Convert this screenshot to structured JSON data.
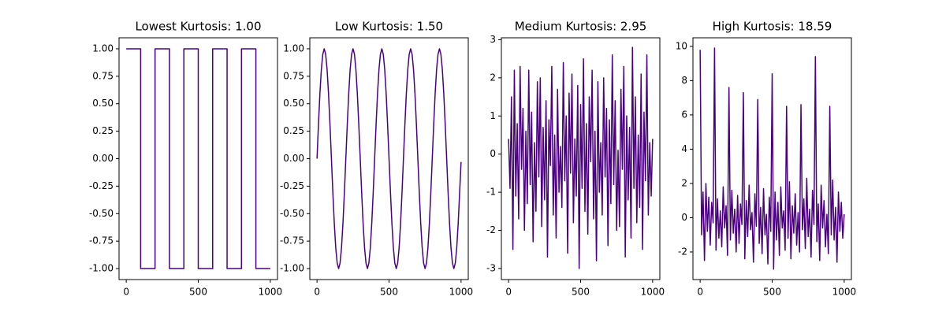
{
  "chart_data": [
    {
      "type": "line",
      "title": "Lowest Kurtosis: 1.00",
      "color": "#4b0082",
      "x": [
        0,
        100,
        100,
        200,
        200,
        300,
        300,
        400,
        400,
        500,
        500,
        600,
        600,
        700,
        700,
        800,
        800,
        900,
        900,
        1000
      ],
      "values": [
        1,
        1,
        -1,
        -1,
        1,
        1,
        -1,
        -1,
        1,
        1,
        -1,
        -1,
        1,
        1,
        -1,
        -1,
        1,
        1,
        -1,
        -1
      ],
      "xlim": [
        -50,
        1050
      ],
      "xticks": [
        0,
        500,
        1000
      ],
      "ylim": [
        -1.1,
        1.1
      ],
      "yticks": [
        {
          "value": -1,
          "label": "-1.00"
        },
        {
          "value": -0.75,
          "label": "-0.75"
        },
        {
          "value": -0.5,
          "label": "-0.50"
        },
        {
          "value": -0.25,
          "label": "-0.25"
        },
        {
          "value": 0,
          "label": "0.00"
        },
        {
          "value": 0.25,
          "label": "0.25"
        },
        {
          "value": 0.5,
          "label": "0.50"
        },
        {
          "value": 0.75,
          "label": "0.75"
        },
        {
          "value": 1,
          "label": "1.00"
        }
      ]
    },
    {
      "type": "line",
      "title": "Low Kurtosis: 1.50",
      "color": "#4b0082",
      "x": [
        0,
        10,
        20,
        30,
        40,
        50,
        60,
        70,
        80,
        90,
        100,
        110,
        120,
        130,
        140,
        150,
        160,
        170,
        180,
        190,
        200,
        210,
        220,
        230,
        240,
        250,
        260,
        270,
        280,
        290,
        300,
        310,
        320,
        330,
        340,
        350,
        360,
        370,
        380,
        390,
        400,
        410,
        420,
        430,
        440,
        450,
        460,
        470,
        480,
        490,
        500,
        510,
        520,
        530,
        540,
        550,
        560,
        570,
        580,
        590,
        600,
        610,
        620,
        630,
        640,
        650,
        660,
        670,
        680,
        690,
        700,
        710,
        720,
        730,
        740,
        750,
        760,
        770,
        780,
        790,
        800,
        810,
        820,
        830,
        840,
        850,
        860,
        870,
        880,
        890,
        900,
        910,
        920,
        930,
        940,
        950,
        960,
        970,
        980,
        990,
        1000
      ],
      "values": [
        0,
        0.31,
        0.59,
        0.81,
        0.95,
        1,
        0.95,
        0.81,
        0.59,
        0.31,
        0,
        -0.31,
        -0.59,
        -0.81,
        -0.95,
        -1,
        -0.95,
        -0.81,
        -0.59,
        -0.31,
        0,
        0.31,
        0.59,
        0.81,
        0.95,
        1,
        0.95,
        0.81,
        0.59,
        0.31,
        0,
        -0.31,
        -0.59,
        -0.81,
        -0.95,
        -1,
        -0.95,
        -0.81,
        -0.59,
        -0.31,
        0,
        0.31,
        0.59,
        0.81,
        0.95,
        1,
        0.95,
        0.81,
        0.59,
        0.31,
        0,
        -0.31,
        -0.59,
        -0.81,
        -0.95,
        -1,
        -0.95,
        -0.81,
        -0.59,
        -0.31,
        0,
        0.31,
        0.59,
        0.81,
        0.95,
        1,
        0.95,
        0.81,
        0.59,
        0.31,
        0,
        -0.31,
        -0.59,
        -0.81,
        -0.95,
        -1,
        -0.95,
        -0.81,
        -0.59,
        -0.31,
        0,
        0.31,
        0.59,
        0.81,
        0.95,
        1,
        0.95,
        0.81,
        0.59,
        0.31,
        0,
        -0.31,
        -0.59,
        -0.81,
        -0.95,
        -1,
        -0.95,
        -0.81,
        -0.59,
        -0.31,
        -0.03
      ],
      "xlim": [
        -50,
        1050
      ],
      "xticks": [
        0,
        500,
        1000
      ],
      "ylim": [
        -1.1,
        1.1
      ],
      "yticks": [
        {
          "value": -1,
          "label": "-1.00"
        },
        {
          "value": -0.75,
          "label": "-0.75"
        },
        {
          "value": -0.5,
          "label": "-0.50"
        },
        {
          "value": -0.25,
          "label": "-0.25"
        },
        {
          "value": 0,
          "label": "0.00"
        },
        {
          "value": 0.25,
          "label": "0.25"
        },
        {
          "value": 0.5,
          "label": "0.50"
        },
        {
          "value": 0.75,
          "label": "0.75"
        },
        {
          "value": 1,
          "label": "1.00"
        }
      ]
    },
    {
      "type": "line",
      "title": "Medium Kurtosis: 2.95",
      "color": "#4b0082",
      "x": [
        0,
        10,
        20,
        30,
        40,
        50,
        60,
        70,
        80,
        90,
        100,
        110,
        120,
        130,
        140,
        150,
        160,
        170,
        180,
        190,
        200,
        210,
        220,
        230,
        240,
        250,
        260,
        270,
        280,
        290,
        300,
        310,
        320,
        330,
        340,
        350,
        360,
        370,
        380,
        390,
        400,
        410,
        420,
        430,
        440,
        450,
        460,
        470,
        480,
        490,
        500,
        510,
        520,
        530,
        540,
        550,
        560,
        570,
        580,
        590,
        600,
        610,
        620,
        630,
        640,
        650,
        660,
        670,
        680,
        690,
        700,
        710,
        720,
        730,
        740,
        750,
        760,
        770,
        780,
        790,
        800,
        810,
        820,
        830,
        840,
        850,
        860,
        870,
        880,
        890,
        900,
        910,
        920,
        930,
        940,
        950,
        960,
        970,
        980,
        990,
        1000
      ],
      "values": [
        0.4,
        -0.9,
        1.5,
        -2.5,
        2.2,
        -1.1,
        0.8,
        -1.7,
        2.3,
        -0.4,
        1.2,
        -2.0,
        0.6,
        -1.3,
        2.2,
        -0.8,
        1.1,
        -2.3,
        0.3,
        -1.5,
        1.9,
        -0.6,
        2.0,
        -1.9,
        0.7,
        -1.2,
        1.4,
        -2.7,
        0.9,
        -0.3,
        2.3,
        -1.6,
        0.5,
        -2.2,
        1.7,
        -1.0,
        0.2,
        -1.4,
        2.4,
        -0.7,
        1.0,
        -2.6,
        1.6,
        -0.5,
        2.1,
        -1.8,
        0.4,
        -1.1,
        1.8,
        -3.0,
        1.3,
        -0.9,
        2.5,
        -1.5,
        0.8,
        -2.1,
        1.5,
        -0.2,
        2.2,
        -1.7,
        0.6,
        -2.8,
        1.9,
        -1.0,
        0.3,
        -1.6,
        2.0,
        -0.6,
        1.2,
        -2.4,
        0.9,
        -1.3,
        2.6,
        -0.8,
        1.4,
        -2.0,
        0.1,
        -1.9,
        1.7,
        -0.4,
        2.3,
        -2.7,
        1.0,
        -1.2,
        0.7,
        -2.2,
        2.8,
        -0.9,
        1.5,
        -1.8,
        0.5,
        -1.4,
        2.1,
        -2.5,
        1.1,
        -0.7,
        2.6,
        -1.6,
        0.3,
        -1.1,
        0.4
      ],
      "xlim": [
        -50,
        1050
      ],
      "xticks": [
        0,
        500,
        1000
      ],
      "ylim": [
        -3.29,
        3.05
      ],
      "yticks": [
        -3,
        -2,
        -1,
        0,
        1,
        2,
        3
      ]
    },
    {
      "type": "line",
      "title": "High Kurtosis: 18.59",
      "color": "#4b0082",
      "x": [
        0,
        10,
        20,
        30,
        40,
        50,
        60,
        70,
        80,
        90,
        100,
        110,
        120,
        130,
        140,
        150,
        160,
        170,
        180,
        190,
        200,
        210,
        220,
        230,
        240,
        250,
        260,
        270,
        280,
        290,
        300,
        310,
        320,
        330,
        340,
        350,
        360,
        370,
        380,
        390,
        400,
        410,
        420,
        430,
        440,
        450,
        460,
        470,
        480,
        490,
        500,
        510,
        520,
        530,
        540,
        550,
        560,
        570,
        580,
        590,
        600,
        610,
        620,
        630,
        640,
        650,
        660,
        670,
        680,
        690,
        700,
        710,
        720,
        730,
        740,
        750,
        760,
        770,
        780,
        790,
        800,
        810,
        820,
        830,
        840,
        850,
        860,
        870,
        880,
        890,
        900,
        910,
        920,
        930,
        940,
        950,
        960,
        970,
        980,
        990,
        1000
      ],
      "values": [
        9.8,
        -1.0,
        1.5,
        -2.5,
        2.0,
        -0.8,
        1.2,
        -1.6,
        0.9,
        -0.3,
        9.9,
        -1.9,
        1.1,
        -1.2,
        0.4,
        -1.7,
        1.8,
        -0.6,
        0.7,
        -2.2,
        7.6,
        -1.3,
        1.6,
        -0.9,
        0.5,
        -2.0,
        1.3,
        -1.5,
        0.8,
        -0.4,
        7.3,
        -2.4,
        1.0,
        -1.1,
        1.9,
        -0.7,
        0.3,
        -2.6,
        1.4,
        -0.5,
        6.9,
        -1.5,
        0.6,
        -2.1,
        1.7,
        -1.0,
        0.2,
        -2.7,
        1.2,
        -0.8,
        8.4,
        -3.0,
        1.5,
        -1.3,
        0.9,
        -2.2,
        1.8,
        -0.6,
        0.4,
        -1.9,
        6.5,
        -1.2,
        2.1,
        -2.4,
        0.7,
        -0.9,
        1.4,
        -1.6,
        0.3,
        -2.0,
        6.6,
        -0.7,
        1.1,
        -1.8,
        2.3,
        -1.1,
        0.5,
        -2.3,
        1.6,
        -0.4,
        9.4,
        -1.4,
        0.8,
        -2.5,
        1.9,
        -0.6,
        1.0,
        -1.7,
        0.2,
        -2.1,
        6.5,
        -1.0,
        2.2,
        -1.3,
        0.6,
        -2.6,
        1.5,
        -0.8,
        0.9,
        -1.2,
        0.2
      ],
      "xlim": [
        -50,
        1050
      ],
      "xticks": [
        0,
        500,
        1000
      ],
      "ylim": [
        -3.61,
        10.5
      ],
      "yticks": [
        -2,
        0,
        2,
        4,
        6,
        8,
        10
      ]
    }
  ]
}
